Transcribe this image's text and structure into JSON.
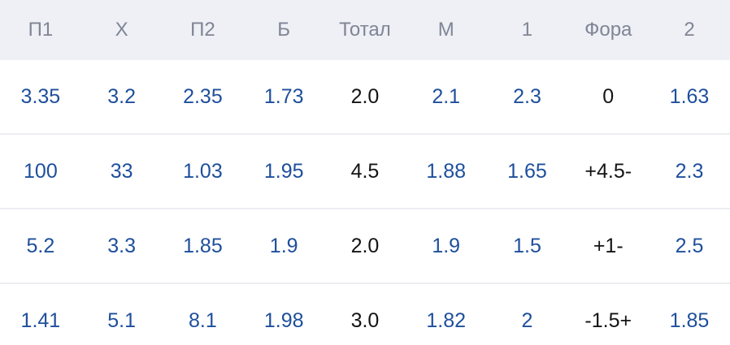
{
  "headers": [
    "П1",
    "Х",
    "П2",
    "Б",
    "Тотал",
    "М",
    "1",
    "Фора",
    "2"
  ],
  "rows": [
    [
      "3.35",
      "3.2",
      "2.35",
      "1.73",
      "2.0",
      "2.1",
      "2.3",
      "0",
      "1.63"
    ],
    [
      "100",
      "33",
      "1.03",
      "1.95",
      "4.5",
      "1.88",
      "1.65",
      "+4.5-",
      "2.3"
    ],
    [
      "5.2",
      "3.3",
      "1.85",
      "1.9",
      "2.0",
      "1.9",
      "1.5",
      "+1-",
      "2.5"
    ],
    [
      "1.41",
      "5.1",
      "8.1",
      "1.98",
      "3.0",
      "1.82",
      "2",
      "-1.5+",
      "1.85"
    ]
  ],
  "colors": {
    "header_bg": "#eef0f5",
    "header_text": "#7f8595",
    "odds_text": "#1e4f9c",
    "static_text": "#141414",
    "divider": "#eceef2"
  }
}
